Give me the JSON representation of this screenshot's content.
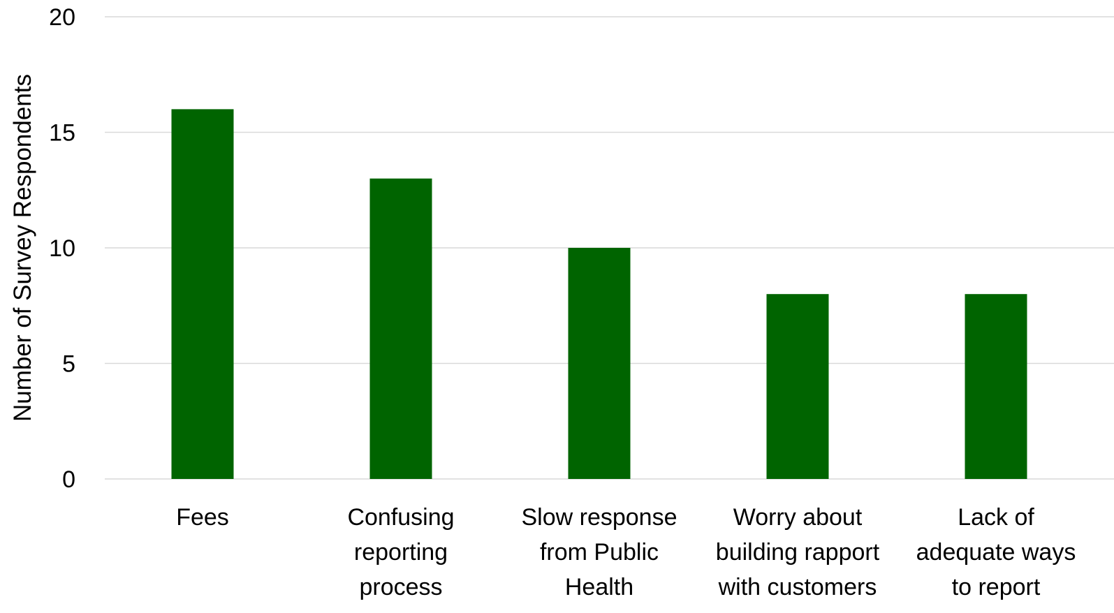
{
  "chart_data": {
    "type": "bar",
    "title": "",
    "xlabel": "",
    "ylabel": "Number of Survey Respondents",
    "ylim": [
      0,
      20
    ],
    "yticks": [
      0,
      5,
      10,
      15,
      20
    ],
    "grid": true,
    "bar_color": "#006400",
    "categories": [
      [
        "Fees"
      ],
      [
        "Confusing",
        "reporting",
        "process"
      ],
      [
        "Slow response",
        "from Public",
        "Health"
      ],
      [
        "Worry about",
        "building rapport",
        "with customers"
      ],
      [
        "Lack of",
        "adequate ways",
        "to report"
      ]
    ],
    "values": [
      16,
      13,
      10,
      8,
      8
    ]
  }
}
